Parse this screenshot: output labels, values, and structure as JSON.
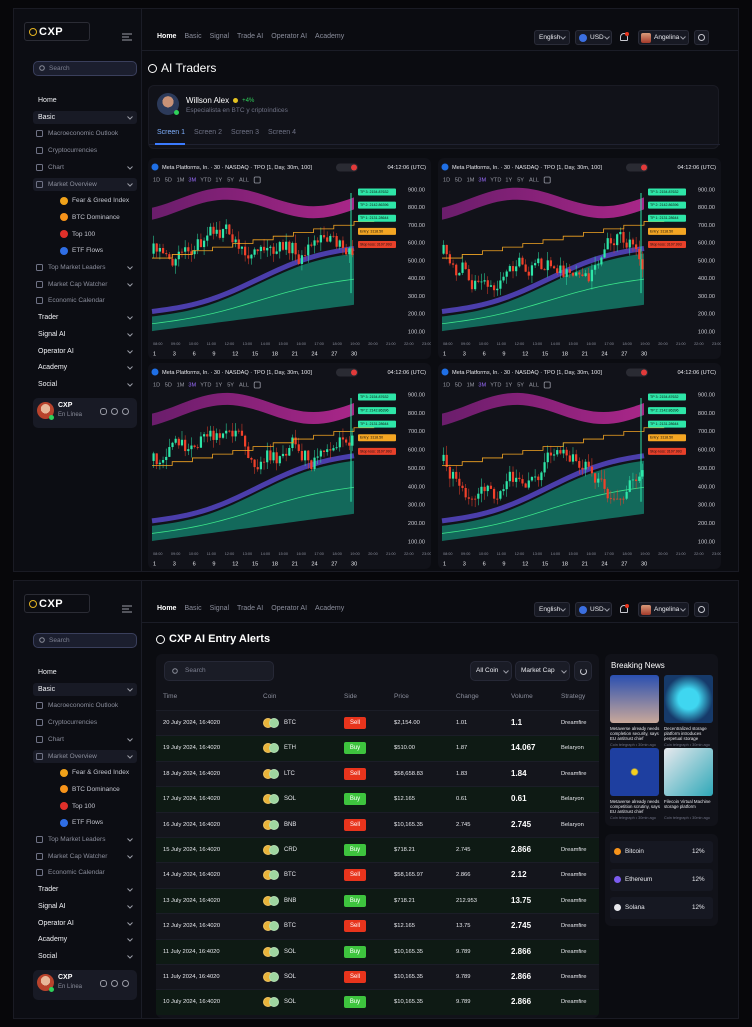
{
  "app": {
    "logo": "CXP",
    "nav": [
      "Home",
      "Basic",
      "Signal",
      "Trade AI",
      "Operator AI",
      "Academy"
    ],
    "active_nav": "Home",
    "language": "English",
    "currency": "USD",
    "user": "Angelina"
  },
  "sidebar": {
    "search": "Search",
    "items": [
      {
        "label": "Home"
      },
      {
        "label": "Basic",
        "expandable": true,
        "items": [
          {
            "label": "Macroeconomic Outlook"
          },
          {
            "label": "Cryptocurrencies"
          },
          {
            "label": "Chart",
            "expandable": true
          },
          {
            "label": "Market Overview",
            "expandable": true,
            "items": [
              {
                "label": "Fear & Greed Index",
                "icon_color": "#f0a21a"
              },
              {
                "label": "BTC Dominance",
                "icon_color": "#f7931a"
              },
              {
                "label": "Top 100",
                "icon_color": "#e0302a"
              },
              {
                "label": "ETF Flows",
                "icon_color": "#2f6ee5"
              }
            ]
          },
          {
            "label": "Top Market Leaders",
            "expandable": true
          },
          {
            "label": "Market Cap Watcher",
            "expandable": true
          },
          {
            "label": "Economic Calendar"
          }
        ]
      },
      {
        "label": "Trader",
        "expandable": true
      },
      {
        "label": "Signal AI",
        "expandable": true
      },
      {
        "label": "Operator AI",
        "expandable": true
      },
      {
        "label": "Academy",
        "expandable": true
      },
      {
        "label": "Social",
        "expandable": true
      }
    ],
    "profile": {
      "name": "CXP",
      "status": "En Línea"
    }
  },
  "traders": {
    "title": "AI Traders",
    "trader": {
      "name": "Willson Alex",
      "change": "+4%",
      "bio": "Especialista en BTC  y criptoíndices"
    },
    "tabs": [
      "Screen 1",
      "Screen 2",
      "Screen 3",
      "Screen 4"
    ],
    "active_tab": "Screen 1",
    "chart": {
      "symbol": "Meta Platforms, In. · 30 · NASDAQ · TPO [1, Day, 30m, 100]",
      "time": "04:12:06 (UTC)",
      "timeframes": [
        "1D",
        "5D",
        "1M",
        "3M",
        "YTD",
        "1Y",
        "5Y",
        "ALL"
      ],
      "active_timeframe": "3M",
      "price_ticks": [
        "900.00",
        "800.00",
        "700.00",
        "600.00",
        "500.00",
        "400.00",
        "300.00",
        "200.00",
        "100.00"
      ],
      "time_ticks": [
        "08:00",
        "09:00",
        "10:00",
        "11:00",
        "12:00",
        "13:00",
        "14:00",
        "15:00",
        "16:00",
        "17:00",
        "18:00",
        "19:00",
        "20:00",
        "21:00",
        "22:00",
        "23:00"
      ],
      "day_ticks": [
        "1",
        "3",
        "6",
        "9",
        "12",
        "15",
        "18",
        "21",
        "24",
        "27",
        "30"
      ],
      "levels": [
        {
          "label": "TP 3: 2154.87632",
          "color": "#2ee6a8"
        },
        {
          "label": "TP 2: 2142.86396",
          "color": "#2ee6a8"
        },
        {
          "label": "TP 1: 2131.28644",
          "color": "#2ee6a8"
        },
        {
          "label": "Entry: 3118.50",
          "color": "#f5a623"
        },
        {
          "label": "Stop loss: 3107.993",
          "color": "#e8402a"
        }
      ]
    }
  },
  "alerts": {
    "title": "CXP AI Entry Alerts",
    "search": "Search",
    "filters": [
      "All Coin",
      "Market Cap"
    ],
    "columns": [
      "Time",
      "Coin",
      "Side",
      "Price",
      "Change",
      "Volume",
      "Strategy"
    ],
    "side_colors": {
      "Sell": "#e8341c",
      "Buy": "#3ec43e"
    },
    "rows": [
      [
        "20 July 2024, 16:4020",
        "BTC",
        "Sell",
        "$2,154.00",
        "1.01",
        "1.1",
        "Dreamfire"
      ],
      [
        "19 July 2024, 16:4020",
        "ETH",
        "Buy",
        "$510.00",
        "1.87",
        "14.067",
        "Belaryon"
      ],
      [
        "18 July 2024, 16:4020",
        "LTC",
        "Sell",
        "$58,658.83",
        "1.83",
        "1.84",
        "Dreamfire"
      ],
      [
        "17 July 2024, 16:4020",
        "SOL",
        "Buy",
        "$12.165",
        "0.61",
        "0.61",
        "Belaryon"
      ],
      [
        "16 July 2024, 16:4020",
        "BNB",
        "Sell",
        "$10,165.35",
        "2.745",
        "2.745",
        "Belaryon"
      ],
      [
        "15 July 2024, 16:4020",
        "CRD",
        "Buy",
        "$718.21",
        "2.745",
        "2.866",
        "Dreamfire"
      ],
      [
        "14 July 2024, 16:4020",
        "BTC",
        "Sell",
        "$58,165.97",
        "2.866",
        "2.12",
        "Dreamfire"
      ],
      [
        "13 July 2024, 16:4020",
        "BNB",
        "Buy",
        "$718.21",
        "212.953",
        "13.75",
        "Dreamfire"
      ],
      [
        "12 July 2024, 16:4020",
        "BTC",
        "Sell",
        "$12.165",
        "13.75",
        "2.745",
        "Dreamfire"
      ],
      [
        "11 July 2024, 16:4020",
        "SOL",
        "Buy",
        "$10,165.35",
        "9.789",
        "2.866",
        "Dreamfire"
      ],
      [
        "11 July 2024, 16:4020",
        "SOL",
        "Sell",
        "$10,165.35",
        "9.789",
        "2.866",
        "Dreamfire"
      ],
      [
        "10 July 2024, 16:4020",
        "SOL",
        "Buy",
        "$10,165.35",
        "9.789",
        "2.866",
        "Dreamfire"
      ]
    ]
  },
  "news": {
    "title": "Breaking News",
    "items": [
      {
        "headline": "Metaverse already needs completion security, says EU antitrust chief",
        "source": "Coin telegraph • 30min ago"
      },
      {
        "headline": "Decentralized storage platform introduces perpetual storage",
        "source": "Coin telegraph • 30min ago"
      },
      {
        "headline": "Metaverse already needs competition scrutiny, says EU antitrust chief",
        "source": "Coin telegraph • 30min ago"
      },
      {
        "headline": "Filecoin Virtual Machine storage platform",
        "source": "Coin telegraph • 30min ago"
      }
    ],
    "coins": [
      {
        "name": "Bitcoin",
        "change": "12%",
        "color": "#f7931a"
      },
      {
        "name": "Ethereum",
        "change": "12%",
        "color": "#7b5cf0"
      },
      {
        "name": "Solana",
        "change": "12%",
        "color": "#e8e8ee"
      }
    ]
  }
}
